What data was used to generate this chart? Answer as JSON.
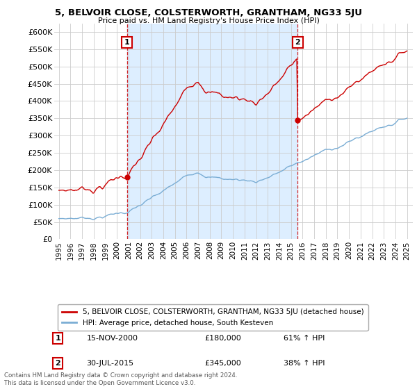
{
  "title1": "5, BELVOIR CLOSE, COLSTERWORTH, GRANTHAM, NG33 5JU",
  "title2": "Price paid vs. HM Land Registry's House Price Index (HPI)",
  "ylabel_ticks": [
    "£0",
    "£50K",
    "£100K",
    "£150K",
    "£200K",
    "£250K",
    "£300K",
    "£350K",
    "£400K",
    "£450K",
    "£500K",
    "£550K",
    "£600K"
  ],
  "ytick_vals": [
    0,
    50000,
    100000,
    150000,
    200000,
    250000,
    300000,
    350000,
    400000,
    450000,
    500000,
    550000,
    600000
  ],
  "ylim": [
    0,
    625000
  ],
  "xlim_start": 1994.6,
  "xlim_end": 2025.5,
  "legend_line1": "5, BELVOIR CLOSE, COLSTERWORTH, GRANTHAM, NG33 5JU (detached house)",
  "legend_line2": "HPI: Average price, detached house, South Kesteven",
  "marker1_label": "1",
  "marker1_date": "15-NOV-2000",
  "marker1_price": "£180,000",
  "marker1_hpi": "61% ↑ HPI",
  "marker1_x": 2000.87,
  "marker1_y": 180000,
  "marker2_label": "2",
  "marker2_date": "30-JUL-2015",
  "marker2_price": "£345,000",
  "marker2_hpi": "38% ↑ HPI",
  "marker2_x": 2015.58,
  "marker2_y": 345000,
  "line_color_red": "#cc0000",
  "line_color_blue": "#7aadd4",
  "shade_color": "#ddeeff",
  "marker_box_color": "#cc0000",
  "grid_color": "#cccccc",
  "background_color": "#ffffff",
  "footer_text": "Contains HM Land Registry data © Crown copyright and database right 2024.\nThis data is licensed under the Open Government Licence v3.0."
}
